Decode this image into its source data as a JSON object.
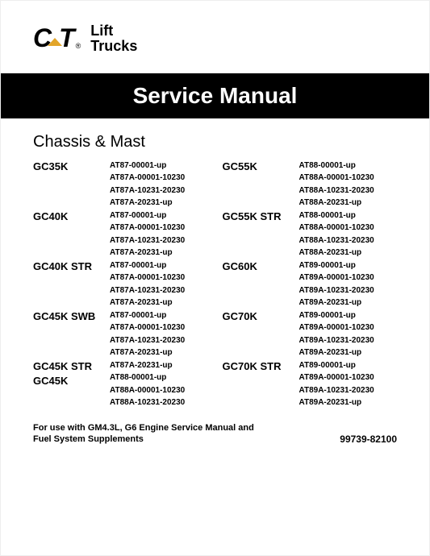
{
  "brand": {
    "name": "CAT",
    "reg": "®",
    "product_line_1": "Lift",
    "product_line_2": "Trucks"
  },
  "banner": "Service Manual",
  "section": "Chassis & Mast",
  "left": [
    {
      "model": "GC35K",
      "serials": [
        "AT87-00001-up",
        "AT87A-00001-10230",
        "AT87A-10231-20230",
        "AT87A-20231-up"
      ]
    },
    {
      "model": "GC40K",
      "serials": [
        "AT87-00001-up",
        "AT87A-00001-10230",
        "AT87A-10231-20230",
        "AT87A-20231-up"
      ]
    },
    {
      "model": "GC40K STR",
      "serials": [
        "AT87-00001-up",
        "AT87A-00001-10230",
        "AT87A-10231-20230",
        "AT87A-20231-up"
      ]
    },
    {
      "model": "GC45K SWB",
      "serials": [
        "AT87-00001-up",
        "AT87A-00001-10230",
        "AT87A-10231-20230",
        "AT87A-20231-up"
      ]
    },
    {
      "model": "GC45K STR\nGC45K",
      "serials": [
        "AT87A-20231-up",
        "AT88-00001-up",
        "AT88A-00001-10230",
        "AT88A-10231-20230"
      ]
    }
  ],
  "right": [
    {
      "model": "GC55K",
      "serials": [
        "AT88-00001-up",
        "AT88A-00001-10230",
        "AT88A-10231-20230",
        "AT88A-20231-up"
      ]
    },
    {
      "model": "GC55K STR",
      "serials": [
        "AT88-00001-up",
        "AT88A-00001-10230",
        "AT88A-10231-20230",
        "AT88A-20231-up"
      ]
    },
    {
      "model": "GC60K",
      "serials": [
        "AT89-00001-up",
        "AT89A-00001-10230",
        "AT89A-10231-20230",
        "AT89A-20231-up"
      ]
    },
    {
      "model": "GC70K",
      "serials": [
        "AT89-00001-up",
        "AT89A-00001-10230",
        "AT89A-10231-20230",
        "AT89A-20231-up"
      ]
    },
    {
      "model": "GC70K STR",
      "serials": [
        "AT89-00001-up",
        "AT89A-00001-10230",
        "AT89A-10231-20230",
        "AT89A-20231-up"
      ]
    }
  ],
  "footnote": "For use with GM4.3L, G6 Engine Service Manual and\nFuel System Supplements",
  "docnum": "99739-82100"
}
